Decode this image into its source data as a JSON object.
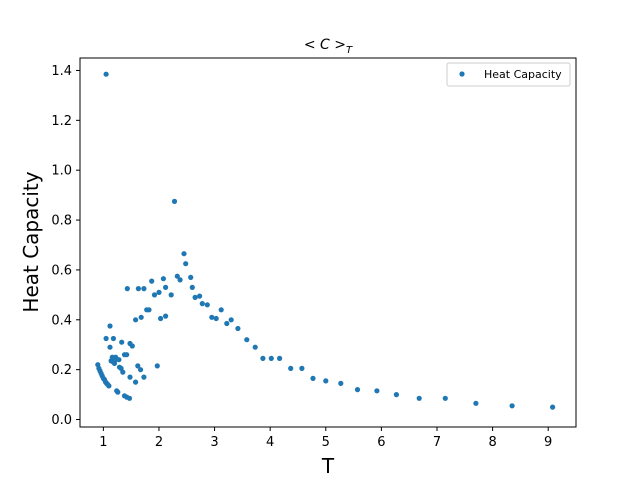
{
  "chart_data": {
    "type": "scatter",
    "title": "<C>_T",
    "title_main": "< C >",
    "title_sub": "T",
    "xlabel": "T",
    "ylabel": "Heat Capacity",
    "xlim": [
      0.58,
      9.5
    ],
    "ylim": [
      -0.03,
      1.45
    ],
    "xticks": [
      1,
      2,
      3,
      4,
      5,
      6,
      7,
      8,
      9
    ],
    "yticks": [
      0.0,
      0.2,
      0.4,
      0.6,
      0.8,
      1.0,
      1.2,
      1.4
    ],
    "yticklabels": [
      "0.0",
      "0.2",
      "0.4",
      "0.6",
      "0.8",
      "1.0",
      "1.2",
      "1.4"
    ],
    "grid": false,
    "legend_position": "top-right",
    "marker_color": "#1f77b4",
    "series": [
      {
        "name": "Heat Capacity",
        "x": [
          1.05,
          2.28,
          2.45,
          2.48,
          2.57,
          2.33,
          2.38,
          2.08,
          2.22,
          2.6,
          2.65,
          2.73,
          2.78,
          2.87,
          1.43,
          1.63,
          1.73,
          1.87,
          1.92,
          2.0,
          2.12,
          1.82,
          2.95,
          3.12,
          1.58,
          1.68,
          1.78,
          2.03,
          2.12,
          3.3,
          3.03,
          3.22,
          3.42,
          3.58,
          3.73,
          3.87,
          4.02,
          4.17,
          4.37,
          4.57,
          4.77,
          5.0,
          5.27,
          5.57,
          5.92,
          6.27,
          6.68,
          7.15,
          7.7,
          8.35,
          9.08,
          1.12,
          1.05,
          1.18,
          1.33,
          1.48,
          1.52,
          1.22,
          1.28,
          1.38,
          1.42,
          1.62,
          1.67,
          1.97,
          1.58,
          1.73,
          1.48,
          0.9,
          0.92,
          0.94,
          0.96,
          0.98,
          1.0,
          1.02,
          1.04,
          1.06,
          1.08,
          1.1,
          1.12,
          1.14,
          1.16,
          1.2,
          1.18,
          1.22,
          1.24,
          1.26,
          1.29,
          1.32,
          1.35,
          1.38,
          1.42,
          1.47
        ],
        "y": [
          1.385,
          0.875,
          0.665,
          0.625,
          0.57,
          0.575,
          0.56,
          0.565,
          0.5,
          0.53,
          0.49,
          0.495,
          0.465,
          0.46,
          0.525,
          0.525,
          0.525,
          0.555,
          0.5,
          0.51,
          0.53,
          0.44,
          0.41,
          0.44,
          0.4,
          0.41,
          0.44,
          0.405,
          0.415,
          0.4,
          0.405,
          0.385,
          0.365,
          0.32,
          0.29,
          0.245,
          0.245,
          0.245,
          0.205,
          0.205,
          0.165,
          0.155,
          0.145,
          0.12,
          0.115,
          0.1,
          0.085,
          0.085,
          0.065,
          0.055,
          0.05,
          0.375,
          0.325,
          0.325,
          0.31,
          0.305,
          0.295,
          0.25,
          0.24,
          0.26,
          0.26,
          0.215,
          0.2,
          0.215,
          0.15,
          0.17,
          0.17,
          0.22,
          0.205,
          0.195,
          0.185,
          0.175,
          0.165,
          0.16,
          0.15,
          0.145,
          0.14,
          0.135,
          0.29,
          0.235,
          0.25,
          0.225,
          0.23,
          0.24,
          0.115,
          0.11,
          0.21,
          0.205,
          0.19,
          0.095,
          0.09,
          0.085
        ]
      }
    ]
  }
}
